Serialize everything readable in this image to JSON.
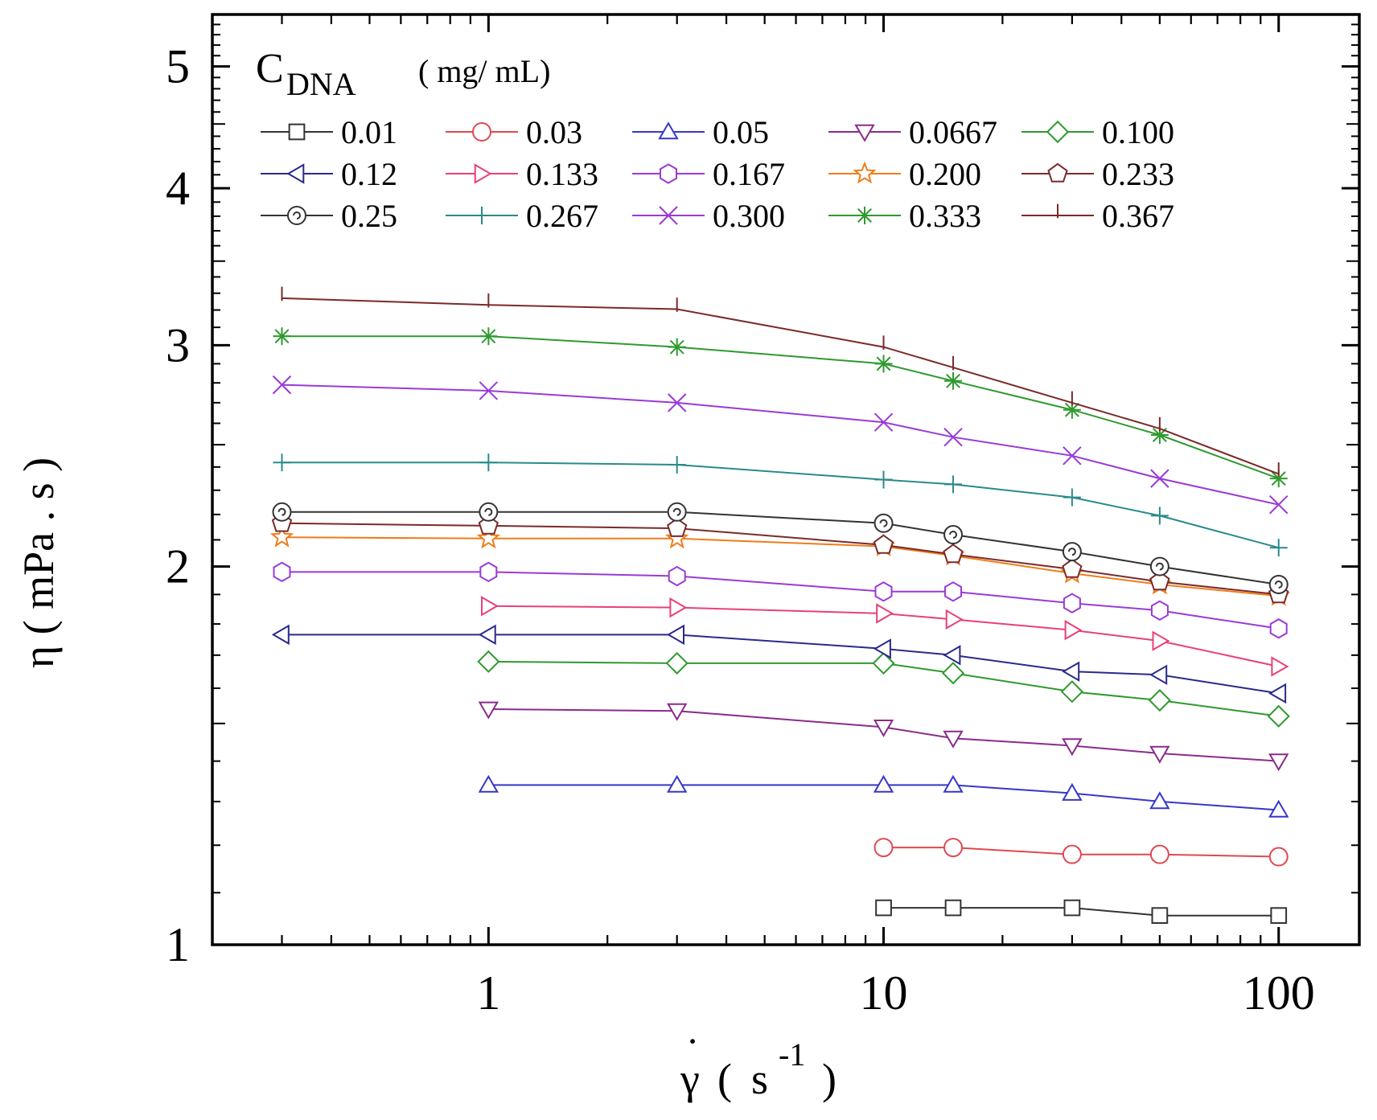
{
  "chart_data": {
    "type": "line",
    "x_scale": "log",
    "y_scale": "log",
    "xlim": [
      0.2,
      160
    ],
    "ylim": [
      1,
      5.5
    ],
    "x_ticks": [
      1,
      10,
      100
    ],
    "x_tick_labels": [
      "1",
      "10",
      "100"
    ],
    "y_ticks": [
      1,
      2,
      3,
      4,
      5
    ],
    "y_tick_labels": [
      "1",
      "2",
      "3",
      "4",
      "5"
    ],
    "xlabel": {
      "gamma": "γ",
      "dot": "˙",
      "open": "(",
      "unit": "s",
      "exp": "-1",
      "close": ")"
    },
    "ylabel": "η ( mPa . s )",
    "legend": {
      "position": "top-left",
      "title_main": "C",
      "title_sub": "DNA",
      "title_unit": "( mg/ mL)"
    },
    "series": [
      {
        "name": "0.01",
        "color": "#333333",
        "marker": "square",
        "x": [
          10,
          15,
          30,
          50,
          100
        ],
        "y": [
          1.07,
          1.07,
          1.07,
          1.055,
          1.055
        ]
      },
      {
        "name": "0.03",
        "color": "#e0484f",
        "marker": "circle",
        "x": [
          10,
          15,
          30,
          50,
          100
        ],
        "y": [
          1.195,
          1.195,
          1.18,
          1.18,
          1.175
        ]
      },
      {
        "name": "0.05",
        "color": "#3737c8",
        "marker": "triangle-up",
        "x": [
          1,
          3,
          10,
          15,
          30,
          50,
          100
        ],
        "y": [
          1.34,
          1.34,
          1.34,
          1.34,
          1.32,
          1.3,
          1.28
        ]
      },
      {
        "name": "0.0667",
        "color": "#8a2b8a",
        "marker": "triangle-down",
        "x": [
          1,
          3,
          10,
          15,
          30,
          50,
          100
        ],
        "y": [
          1.54,
          1.535,
          1.49,
          1.46,
          1.44,
          1.42,
          1.4
        ]
      },
      {
        "name": "0.100",
        "color": "#2e9a2e",
        "marker": "diamond",
        "x": [
          1,
          3,
          10,
          15,
          30,
          50,
          100
        ],
        "y": [
          1.68,
          1.675,
          1.675,
          1.645,
          1.59,
          1.565,
          1.52
        ]
      },
      {
        "name": "0.12",
        "color": "#2a2a8a",
        "marker": "triangle-left",
        "x": [
          0.3,
          1,
          3,
          10,
          15,
          30,
          50,
          100
        ],
        "y": [
          1.765,
          1.765,
          1.765,
          1.72,
          1.7,
          1.65,
          1.64,
          1.585
        ]
      },
      {
        "name": "0.133",
        "color": "#e8407a",
        "marker": "triangle-right",
        "x": [
          1,
          3,
          10,
          15,
          30,
          50,
          100
        ],
        "y": [
          1.86,
          1.855,
          1.835,
          1.815,
          1.78,
          1.745,
          1.665
        ]
      },
      {
        "name": "0.167",
        "color": "#9a3ad6",
        "marker": "hexagon",
        "x": [
          0.3,
          1,
          3,
          10,
          15,
          30,
          50,
          100
        ],
        "y": [
          1.98,
          1.98,
          1.965,
          1.91,
          1.91,
          1.87,
          1.845,
          1.785
        ]
      },
      {
        "name": "0.200",
        "color": "#f07c1a",
        "marker": "star",
        "x": [
          0.3,
          1,
          3,
          10,
          15,
          30,
          50,
          100
        ],
        "y": [
          2.11,
          2.105,
          2.105,
          2.075,
          2.04,
          1.975,
          1.935,
          1.895
        ]
      },
      {
        "name": "0.233",
        "color": "#7a2a2a",
        "marker": "pentagon",
        "x": [
          0.3,
          1,
          3,
          10,
          15,
          30,
          50,
          100
        ],
        "y": [
          2.165,
          2.155,
          2.145,
          2.08,
          2.045,
          1.99,
          1.945,
          1.9
        ]
      },
      {
        "name": "0.25",
        "color": "#333333",
        "marker": "spiral-circle",
        "x": [
          0.3,
          1,
          3,
          10,
          15,
          30,
          50,
          100
        ],
        "y": [
          2.21,
          2.21,
          2.21,
          2.165,
          2.12,
          2.055,
          2.0,
          1.935
        ]
      },
      {
        "name": "0.267",
        "color": "#2a8a8a",
        "marker": "plus",
        "x": [
          0.3,
          1,
          3,
          10,
          15,
          30,
          50,
          100
        ],
        "y": [
          2.42,
          2.42,
          2.41,
          2.345,
          2.325,
          2.27,
          2.195,
          2.07
        ]
      },
      {
        "name": "0.300",
        "color": "#9a3ad6",
        "marker": "x",
        "x": [
          0.3,
          1,
          3,
          10,
          15,
          30,
          50,
          100
        ],
        "y": [
          2.79,
          2.76,
          2.7,
          2.605,
          2.535,
          2.45,
          2.35,
          2.24
        ]
      },
      {
        "name": "0.333",
        "color": "#2e9a2e",
        "marker": "asterisk",
        "x": [
          0.3,
          1,
          3,
          10,
          15,
          30,
          50,
          100
        ],
        "y": [
          3.05,
          3.05,
          2.99,
          2.9,
          2.81,
          2.665,
          2.545,
          2.35
        ]
      },
      {
        "name": "0.367",
        "color": "#7a2a2a",
        "marker": "vbar",
        "x": [
          0.3,
          1,
          3,
          10,
          15,
          30,
          50,
          100
        ],
        "y": [
          3.27,
          3.23,
          3.205,
          2.99,
          2.88,
          2.7,
          2.575,
          2.37
        ]
      }
    ]
  }
}
